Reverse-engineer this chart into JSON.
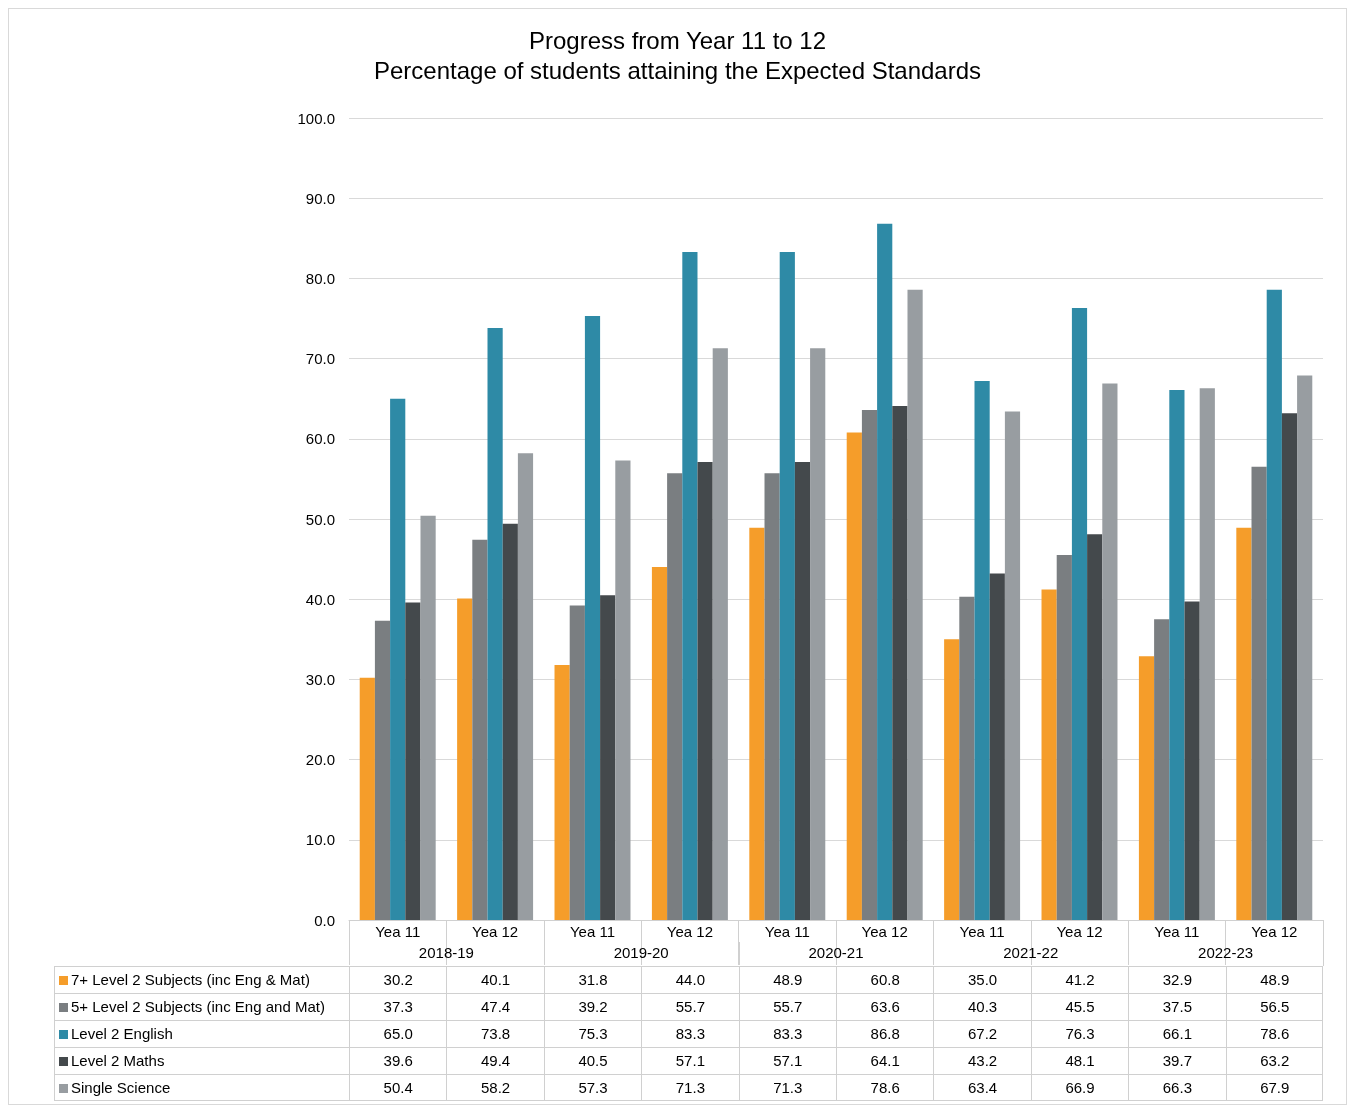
{
  "chart_data": {
    "type": "bar",
    "title": "Progress from Year 11 to 12",
    "subtitle": "Percentage of students attaining the Expected Standards",
    "categories": [
      "Yea 11",
      "Yea 12",
      "Yea 11",
      "Yea 12",
      "Yea 11",
      "Yea 12",
      "Yea 11",
      "Yea 12",
      "Yea 11",
      "Yea 12"
    ],
    "annotations": [
      "2018-19",
      "2019-20",
      "2020-21",
      "2021-22",
      "2022-23"
    ],
    "series": [
      {
        "name": "7+ Level 2 Subjects (inc Eng & Mat)",
        "color": "#f59d2a",
        "values": [
          30.2,
          40.1,
          31.8,
          44.0,
          48.9,
          60.8,
          35.0,
          41.2,
          32.9,
          48.9
        ],
        "value_labels": [
          "30.2",
          "40.1",
          "31.8",
          "44.0",
          "48.9",
          "60.8",
          "35.0",
          "41.2",
          "32.9",
          "48.9"
        ]
      },
      {
        "name": "5+ Level 2 Subjects (inc Eng and Mat)",
        "color": "#7a7e81",
        "values": [
          37.3,
          47.4,
          39.2,
          55.7,
          55.7,
          63.6,
          40.3,
          45.5,
          37.5,
          56.5
        ],
        "value_labels": [
          "37.3",
          "47.4",
          "39.2",
          "55.7",
          "55.7",
          "63.6",
          "40.3",
          "45.5",
          "37.5",
          "56.5"
        ]
      },
      {
        "name": "Level 2 English",
        "color": "#2e8aa6",
        "values": [
          65.0,
          73.8,
          75.3,
          83.3,
          83.3,
          86.8,
          67.2,
          76.3,
          66.1,
          78.6
        ],
        "value_labels": [
          "65.0",
          "73.8",
          "75.3",
          "83.3",
          "83.3",
          "86.8",
          "67.2",
          "76.3",
          "66.1",
          "78.6"
        ]
      },
      {
        "name": "Level 2 Maths",
        "color": "#44494c",
        "values": [
          39.6,
          49.4,
          40.5,
          57.1,
          57.1,
          64.1,
          43.2,
          48.1,
          39.7,
          63.2
        ],
        "value_labels": [
          "39.6",
          "49.4",
          "40.5",
          "57.1",
          "57.1",
          "64.1",
          "43.2",
          "48.1",
          "39.7",
          "63.2"
        ]
      },
      {
        "name": "Single Science",
        "color": "#989da1",
        "values": [
          50.4,
          58.2,
          57.3,
          71.3,
          71.3,
          78.6,
          63.4,
          66.9,
          66.3,
          67.9
        ],
        "value_labels": [
          "50.4",
          "58.2",
          "57.3",
          "71.3",
          "71.3",
          "78.6",
          "63.4",
          "66.9",
          "66.3",
          "67.9"
        ]
      }
    ],
    "ylim": [
      0,
      100
    ],
    "yticks": [
      {
        "value": 0,
        "label": "0.0"
      },
      {
        "value": 10,
        "label": "10.0"
      },
      {
        "value": 20,
        "label": "20.0"
      },
      {
        "value": 30,
        "label": "30.0"
      },
      {
        "value": 40,
        "label": "40.0"
      },
      {
        "value": 50,
        "label": "50.0"
      },
      {
        "value": 60,
        "label": "60.0"
      },
      {
        "value": 70,
        "label": "70.0"
      },
      {
        "value": 80,
        "label": "80.0"
      },
      {
        "value": 90,
        "label": "90.0"
      },
      {
        "value": 100,
        "label": "100.0"
      }
    ],
    "grid": "y",
    "legend": "bottom"
  }
}
